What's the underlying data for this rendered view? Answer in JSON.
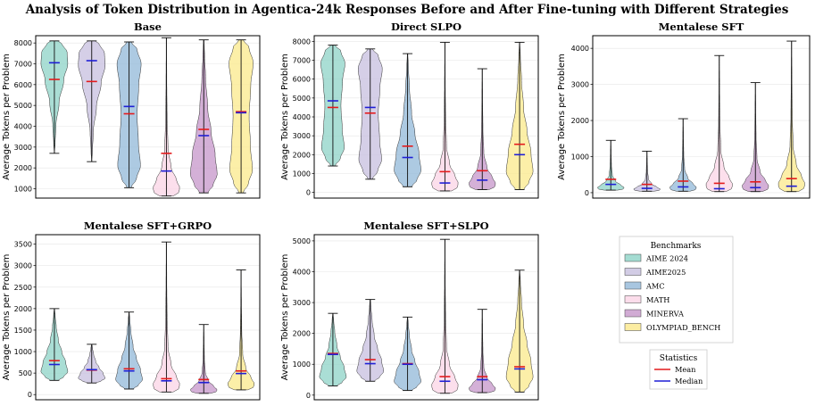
{
  "title": "Analysis of Token Distribution in Agentica-24k Responses Before and After Fine-tuning with Different Strategies",
  "benchmarks_legend": {
    "title": "Benchmarks",
    "items": [
      {
        "label": "AIME 2024",
        "color": "#8dd3c7"
      },
      {
        "label": "AIME2025",
        "color": "#c7bfdf"
      },
      {
        "label": "AMC",
        "color": "#92b8d8"
      },
      {
        "label": "MATH",
        "color": "#fbd4e6"
      },
      {
        "label": "MINERVA",
        "color": "#c596c9"
      },
      {
        "label": "OLYMPIAD_BENCH",
        "color": "#fbe98b"
      }
    ]
  },
  "statistics_legend": {
    "title": "Statistics",
    "items": [
      {
        "label": "Mean",
        "color": "#e41a1c"
      },
      {
        "label": "Median",
        "color": "#1f1fd6"
      }
    ]
  },
  "chart_data": [
    {
      "type": "violin",
      "title": "Base",
      "ylabel": "Average Tokens per Problem",
      "ylim": [
        550,
        8350
      ],
      "yticks": [
        1000,
        2000,
        3000,
        4000,
        5000,
        6000,
        7000,
        8000
      ],
      "series": [
        {
          "name": "AIME 2024",
          "min": 2700,
          "max": 8100,
          "mean": 6250,
          "median": 7050
        },
        {
          "name": "AIME2025",
          "min": 2300,
          "max": 8100,
          "mean": 6150,
          "median": 7150
        },
        {
          "name": "AMC",
          "min": 1050,
          "max": 8050,
          "mean": 4600,
          "median": 4950
        },
        {
          "name": "MATH",
          "min": 650,
          "max": 8250,
          "mean": 2700,
          "median": 1850
        },
        {
          "name": "MINERVA",
          "min": 800,
          "max": 8150,
          "mean": 3850,
          "median": 3550
        },
        {
          "name": "OLYMPIAD_BENCH",
          "min": 800,
          "max": 8150,
          "mean": 4700,
          "median": 4650
        }
      ]
    },
    {
      "type": "violin",
      "title": "Direct SLPO",
      "ylabel": "Average Tokens per Problem",
      "ylim": [
        -300,
        8300
      ],
      "yticks": [
        0,
        1000,
        2000,
        3000,
        4000,
        5000,
        6000,
        7000,
        8000
      ],
      "series": [
        {
          "name": "AIME 2024",
          "min": 1400,
          "max": 7800,
          "mean": 4500,
          "median": 4850
        },
        {
          "name": "AIME2025",
          "min": 700,
          "max": 7600,
          "mean": 4200,
          "median": 4500
        },
        {
          "name": "AMC",
          "min": 300,
          "max": 7350,
          "mean": 2450,
          "median": 1850
        },
        {
          "name": "MATH",
          "min": 80,
          "max": 7950,
          "mean": 1100,
          "median": 500
        },
        {
          "name": "MINERVA",
          "min": 150,
          "max": 6550,
          "mean": 1150,
          "median": 650
        },
        {
          "name": "OLYMPIAD_BENCH",
          "min": 150,
          "max": 7950,
          "mean": 2550,
          "median": 2000
        }
      ]
    },
    {
      "type": "violin",
      "title": "Mentalese SFT",
      "ylabel": "Average Tokens per Problem",
      "ylim": [
        -150,
        4350
      ],
      "yticks": [
        0,
        1000,
        2000,
        3000,
        4000
      ],
      "series": [
        {
          "name": "AIME 2024",
          "min": 70,
          "max": 1450,
          "mean": 370,
          "median": 230
        },
        {
          "name": "AIME2025",
          "min": 40,
          "max": 1150,
          "mean": 230,
          "median": 120
        },
        {
          "name": "AMC",
          "min": 40,
          "max": 2050,
          "mean": 320,
          "median": 160
        },
        {
          "name": "MATH",
          "min": 30,
          "max": 3800,
          "mean": 260,
          "median": 110
        },
        {
          "name": "MINERVA",
          "min": 30,
          "max": 3050,
          "mean": 300,
          "median": 140
        },
        {
          "name": "OLYMPIAD_BENCH",
          "min": 30,
          "max": 4200,
          "mean": 390,
          "median": 180
        }
      ]
    },
    {
      "type": "violin",
      "title": "Mentalese SFT+GRPO",
      "ylabel": "Average Tokens per Problem",
      "ylim": [
        -120,
        3720
      ],
      "yticks": [
        0,
        500,
        1000,
        1500,
        2000,
        2500,
        3000,
        3500
      ],
      "series": [
        {
          "name": "AIME 2024",
          "min": 330,
          "max": 2000,
          "mean": 790,
          "median": 700
        },
        {
          "name": "AIME2025",
          "min": 270,
          "max": 1170,
          "mean": 570,
          "median": 580
        },
        {
          "name": "AMC",
          "min": 130,
          "max": 1920,
          "mean": 600,
          "median": 550
        },
        {
          "name": "MATH",
          "min": 60,
          "max": 3550,
          "mean": 370,
          "median": 320
        },
        {
          "name": "MINERVA",
          "min": 30,
          "max": 1630,
          "mean": 350,
          "median": 280
        },
        {
          "name": "OLYMPIAD_BENCH",
          "min": 110,
          "max": 2900,
          "mean": 550,
          "median": 490
        }
      ]
    },
    {
      "type": "violin",
      "title": "Mentalese SFT+SLPO",
      "ylabel": "Average Tokens per Problem",
      "ylim": [
        -150,
        5200
      ],
      "yticks": [
        0,
        1000,
        2000,
        3000,
        4000,
        5000
      ],
      "series": [
        {
          "name": "AIME 2024",
          "min": 300,
          "max": 2650,
          "mean": 1350,
          "median": 1320
        },
        {
          "name": "AIME2025",
          "min": 450,
          "max": 3100,
          "mean": 1150,
          "median": 1020
        },
        {
          "name": "AMC",
          "min": 150,
          "max": 2530,
          "mean": 1020,
          "median": 1000
        },
        {
          "name": "MATH",
          "min": 60,
          "max": 5050,
          "mean": 600,
          "median": 450
        },
        {
          "name": "MINERVA",
          "min": 80,
          "max": 2780,
          "mean": 600,
          "median": 500
        },
        {
          "name": "OLYMPIAD_BENCH",
          "min": 100,
          "max": 4050,
          "mean": 920,
          "median": 850
        }
      ]
    }
  ]
}
